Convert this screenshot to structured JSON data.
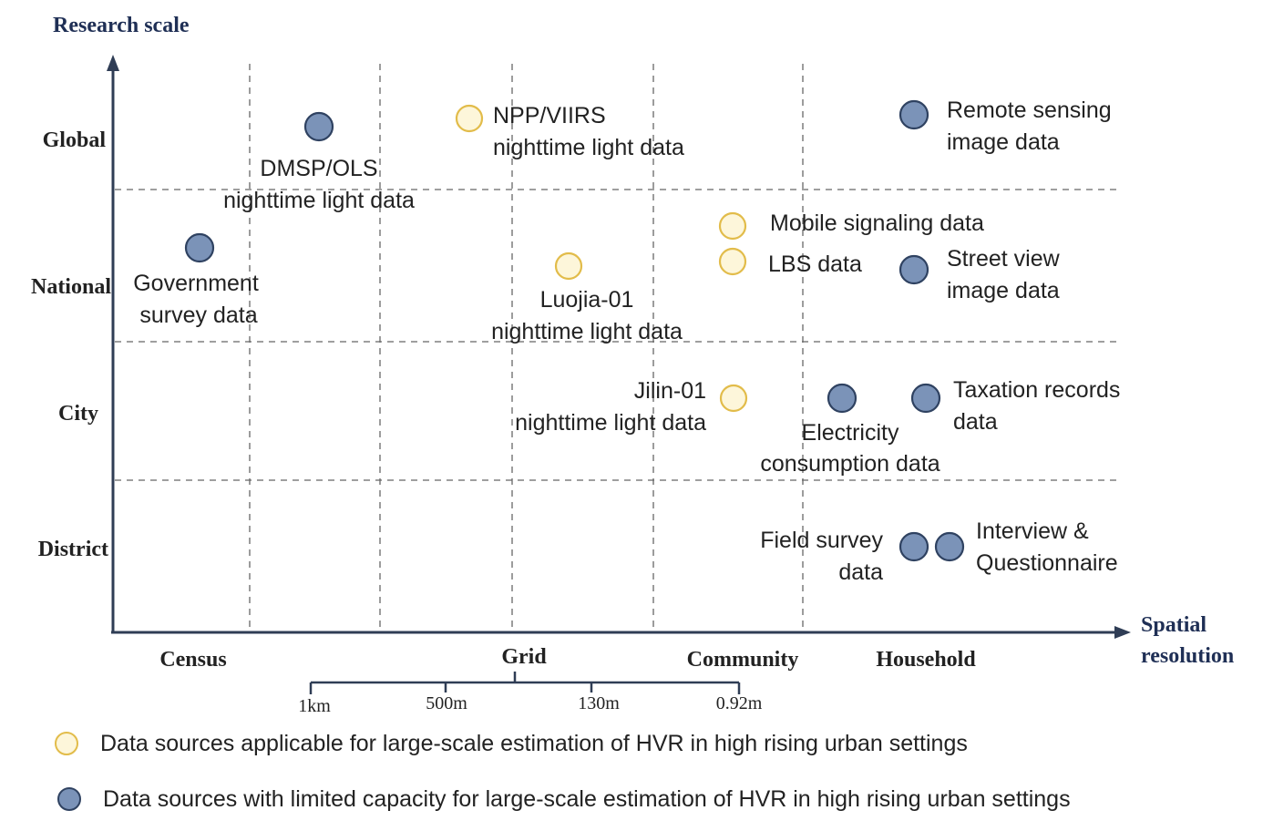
{
  "colors": {
    "axis": "#2f3d55",
    "title": "#1f2f55",
    "grid": "#666666",
    "label": "#222222",
    "yellow_fill": "#fdf6da",
    "yellow_stroke": "#e2bc4a",
    "blue_fill": "#7b93b8",
    "blue_stroke": "#2f4261"
  },
  "axes": {
    "y_title": "Research scale",
    "x_title_line1": "Spatial",
    "x_title_line2": "resolution",
    "y_categories": [
      "Global",
      "National",
      "City",
      "District"
    ],
    "x_categories": [
      "Census",
      "Grid",
      "Community",
      "Household"
    ]
  },
  "scale_bar": {
    "ticks": [
      "1km",
      "500m",
      "130m",
      "0.92m"
    ]
  },
  "items": [
    {
      "type": "yellow",
      "lines": [
        "NPP/VIIRS",
        "nighttime light data"
      ]
    },
    {
      "type": "yellow",
      "lines": [
        "Mobile signaling data"
      ]
    },
    {
      "type": "yellow",
      "lines": [
        "LBS data"
      ]
    },
    {
      "type": "yellow",
      "lines": [
        "Luojia-01",
        "nighttime light data"
      ]
    },
    {
      "type": "yellow",
      "lines": [
        "Jilin-01",
        "nighttime light data"
      ]
    },
    {
      "type": "blue",
      "lines": [
        "DMSP/OLS",
        "nighttime light data"
      ]
    },
    {
      "type": "blue",
      "lines": [
        "Remote sensing",
        "image data"
      ]
    },
    {
      "type": "blue",
      "lines": [
        "Government",
        "survey data"
      ]
    },
    {
      "type": "blue",
      "lines": [
        "Street view",
        "image data"
      ]
    },
    {
      "type": "blue",
      "lines": [
        "Electricity",
        "consumption data"
      ]
    },
    {
      "type": "blue",
      "lines": [
        "Taxation records",
        "data"
      ]
    },
    {
      "type": "blue",
      "lines": [
        "Field survey",
        "data"
      ]
    },
    {
      "type": "blue",
      "lines": [
        "Interview &",
        "Questionnaire"
      ]
    }
  ],
  "legend": {
    "yellow": "Data sources applicable for large-scale estimation of HVR in high rising urban settings",
    "blue": "Data sources with limited capacity for large-scale estimation of HVR in high rising urban settings"
  }
}
